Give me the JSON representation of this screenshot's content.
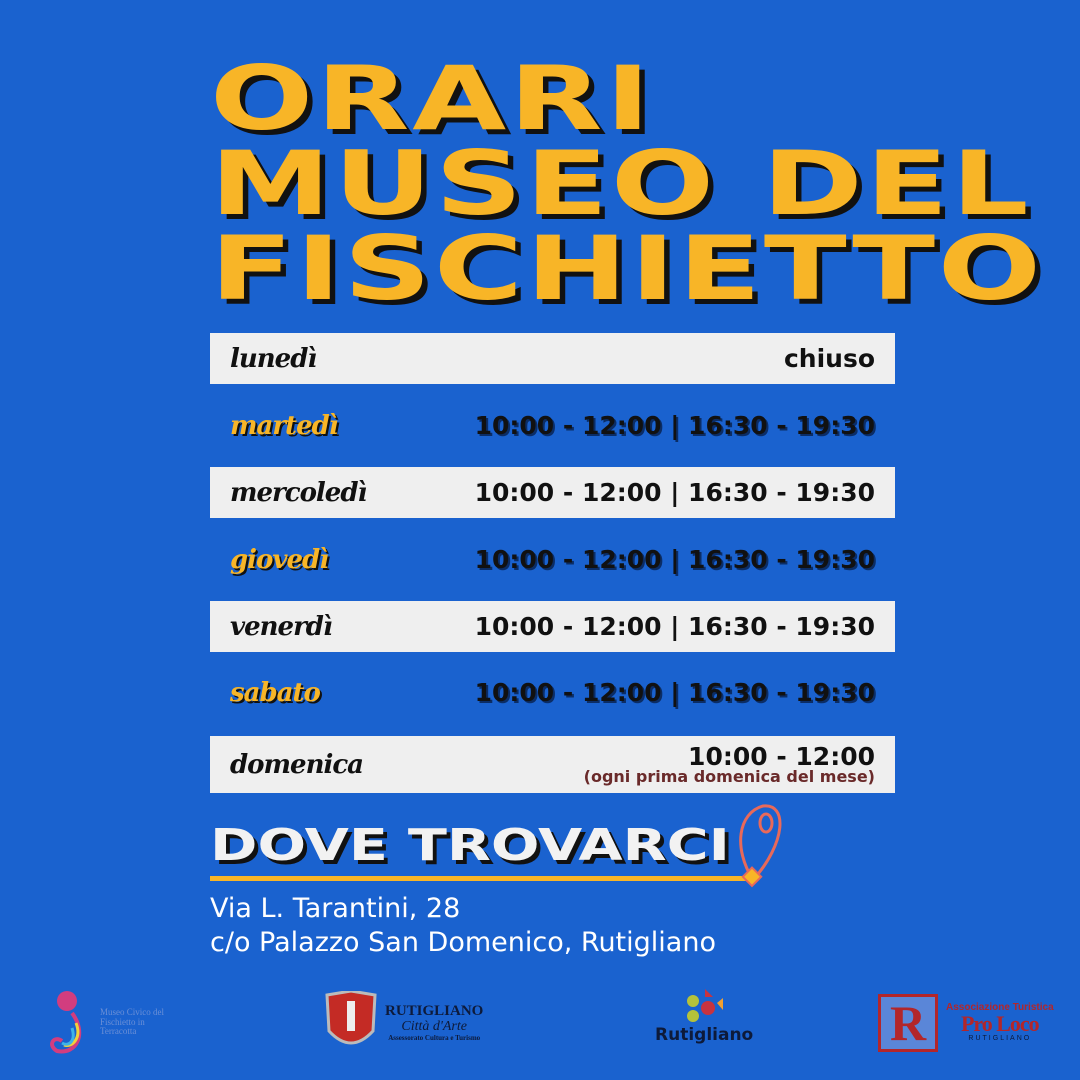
{
  "title": [
    "ORARI",
    "MUSEO DEL",
    "FISCHIETTO"
  ],
  "schedule": [
    {
      "day": "lunedì",
      "hours": "chiuso"
    },
    {
      "day": "martedì",
      "hours": "10:00 - 12:00 | 16:30 - 19:30"
    },
    {
      "day": "mercoledì",
      "hours": "10:00 - 12:00 | 16:30 - 19:30"
    },
    {
      "day": "giovedì",
      "hours": "10:00 - 12:00 | 16:30 - 19:30"
    },
    {
      "day": "venerdì",
      "hours": "10:00 - 12:00 | 16:30 - 19:30"
    },
    {
      "day": "sabato",
      "hours": "10:00 - 12:00 | 16:30 - 19:30"
    },
    {
      "day": "domenica",
      "hours": "10:00 - 12:00",
      "note": "(ogni prima domenica del mese)"
    }
  ],
  "location": {
    "heading": "DOVE TROVARCI",
    "icon": "map-pin-icon",
    "address_line1": "Via L. Tarantini, 28",
    "address_line2": "c/o Palazzo San Domenico, Rutigliano"
  },
  "logos": {
    "museo": "Museo Civico del Fischietto in Terracotta",
    "citta": {
      "name": "RUTIGLIANO",
      "sub": "Città d'Arte",
      "dept": "Assessorato Cultura e Turismo"
    },
    "rutigliano": "Rutigliano",
    "proloco": {
      "top": "Associazione Turistica",
      "name": "Pro Loco",
      "sub": "RUTIGLIANO"
    }
  },
  "colors": {
    "background": "#1a62cf",
    "accent": "#f8b527",
    "row": "#efefef",
    "pin": "#e8695a"
  }
}
